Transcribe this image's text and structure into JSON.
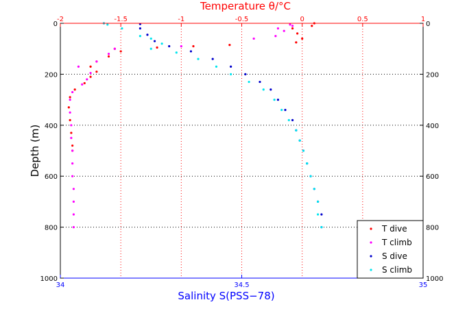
{
  "chart_data": {
    "type": "scatter",
    "title": "",
    "top_axis": {
      "label": "Temperature θ/°C",
      "range": [
        -2,
        1
      ],
      "ticks": [
        -2,
        -1.5,
        -1,
        -0.5,
        0,
        0.5,
        1
      ],
      "color": "#ff0000"
    },
    "bottom_axis": {
      "label": "Salinity S(PSS−78)",
      "range": [
        34,
        35
      ],
      "ticks": [
        34,
        34.5,
        35
      ],
      "color": "#0000ff"
    },
    "y_axis": {
      "label": "Depth (m)",
      "range": [
        0,
        1000
      ],
      "reversed": true,
      "ticks": [
        0,
        200,
        400,
        600,
        800,
        1000
      ]
    },
    "grid": true,
    "legend": {
      "position": "bottom-right"
    },
    "series": [
      {
        "name": "T dive",
        "color": "#ff0000",
        "axis": "top",
        "points": [
          [
            0.1,
            0
          ],
          [
            0.08,
            10
          ],
          [
            -0.08,
            20
          ],
          [
            -0.04,
            40
          ],
          [
            0.0,
            60
          ],
          [
            -0.05,
            75
          ],
          [
            -0.6,
            85
          ],
          [
            -0.9,
            90
          ],
          [
            -1.2,
            95
          ],
          [
            -1.55,
            100
          ],
          [
            -1.5,
            110
          ],
          [
            -1.6,
            130
          ],
          [
            -1.7,
            150
          ],
          [
            -1.75,
            170
          ],
          [
            -1.7,
            190
          ],
          [
            -1.75,
            210
          ],
          [
            -1.8,
            235
          ],
          [
            -1.88,
            260
          ],
          [
            -1.92,
            290
          ],
          [
            -1.93,
            330
          ],
          [
            -1.92,
            380
          ],
          [
            -1.91,
            430
          ],
          [
            -1.9,
            480
          ],
          [
            -1.9,
            500
          ]
        ]
      },
      {
        "name": "T climb",
        "color": "#ff00ff",
        "axis": "top",
        "points": [
          [
            -1.89,
            800
          ],
          [
            -1.89,
            750
          ],
          [
            -1.89,
            700
          ],
          [
            -1.89,
            650
          ],
          [
            -1.9,
            600
          ],
          [
            -1.9,
            550
          ],
          [
            -1.9,
            500
          ],
          [
            -1.91,
            450
          ],
          [
            -1.91,
            400
          ],
          [
            -1.92,
            350
          ],
          [
            -1.92,
            300
          ],
          [
            -1.9,
            270
          ],
          [
            -1.82,
            240
          ],
          [
            -1.78,
            220
          ],
          [
            -1.75,
            195
          ],
          [
            -1.85,
            170
          ],
          [
            -1.7,
            150
          ],
          [
            -1.6,
            120
          ],
          [
            -1.55,
            100
          ],
          [
            -1.0,
            90
          ],
          [
            -0.4,
            60
          ],
          [
            -0.22,
            50
          ],
          [
            -0.15,
            30
          ],
          [
            -0.2,
            20
          ],
          [
            -0.08,
            10
          ],
          [
            -0.1,
            5
          ]
        ]
      },
      {
        "name": "S dive",
        "color": "#0000cc",
        "axis": "bottom",
        "points": [
          [
            34.12,
            0
          ],
          [
            34.22,
            3
          ],
          [
            34.22,
            20
          ],
          [
            34.24,
            45
          ],
          [
            34.26,
            70
          ],
          [
            34.3,
            90
          ],
          [
            34.36,
            110
          ],
          [
            34.42,
            140
          ],
          [
            34.47,
            170
          ],
          [
            34.51,
            200
          ],
          [
            34.55,
            230
          ],
          [
            34.58,
            260
          ],
          [
            34.6,
            300
          ],
          [
            34.62,
            340
          ],
          [
            34.64,
            380
          ],
          [
            34.65,
            420
          ],
          [
            34.66,
            460
          ],
          [
            34.67,
            500
          ],
          [
            34.68,
            550
          ],
          [
            34.69,
            600
          ],
          [
            34.7,
            650
          ],
          [
            34.71,
            700
          ],
          [
            34.72,
            750
          ],
          [
            34.72,
            800
          ]
        ]
      },
      {
        "name": "S climb",
        "color": "#00e5ee",
        "axis": "bottom",
        "points": [
          [
            34.72,
            800
          ],
          [
            34.71,
            750
          ],
          [
            34.71,
            700
          ],
          [
            34.7,
            650
          ],
          [
            34.69,
            600
          ],
          [
            34.68,
            550
          ],
          [
            34.67,
            500
          ],
          [
            34.66,
            460
          ],
          [
            34.65,
            420
          ],
          [
            34.63,
            380
          ],
          [
            34.61,
            340
          ],
          [
            34.59,
            300
          ],
          [
            34.56,
            260
          ],
          [
            34.52,
            230
          ],
          [
            34.47,
            200
          ],
          [
            34.43,
            170
          ],
          [
            34.38,
            140
          ],
          [
            34.32,
            115
          ],
          [
            34.25,
            100
          ],
          [
            34.28,
            80
          ],
          [
            34.25,
            60
          ],
          [
            34.22,
            50
          ],
          [
            34.17,
            20
          ],
          [
            34.13,
            5
          ],
          [
            34.12,
            0
          ]
        ]
      }
    ]
  }
}
